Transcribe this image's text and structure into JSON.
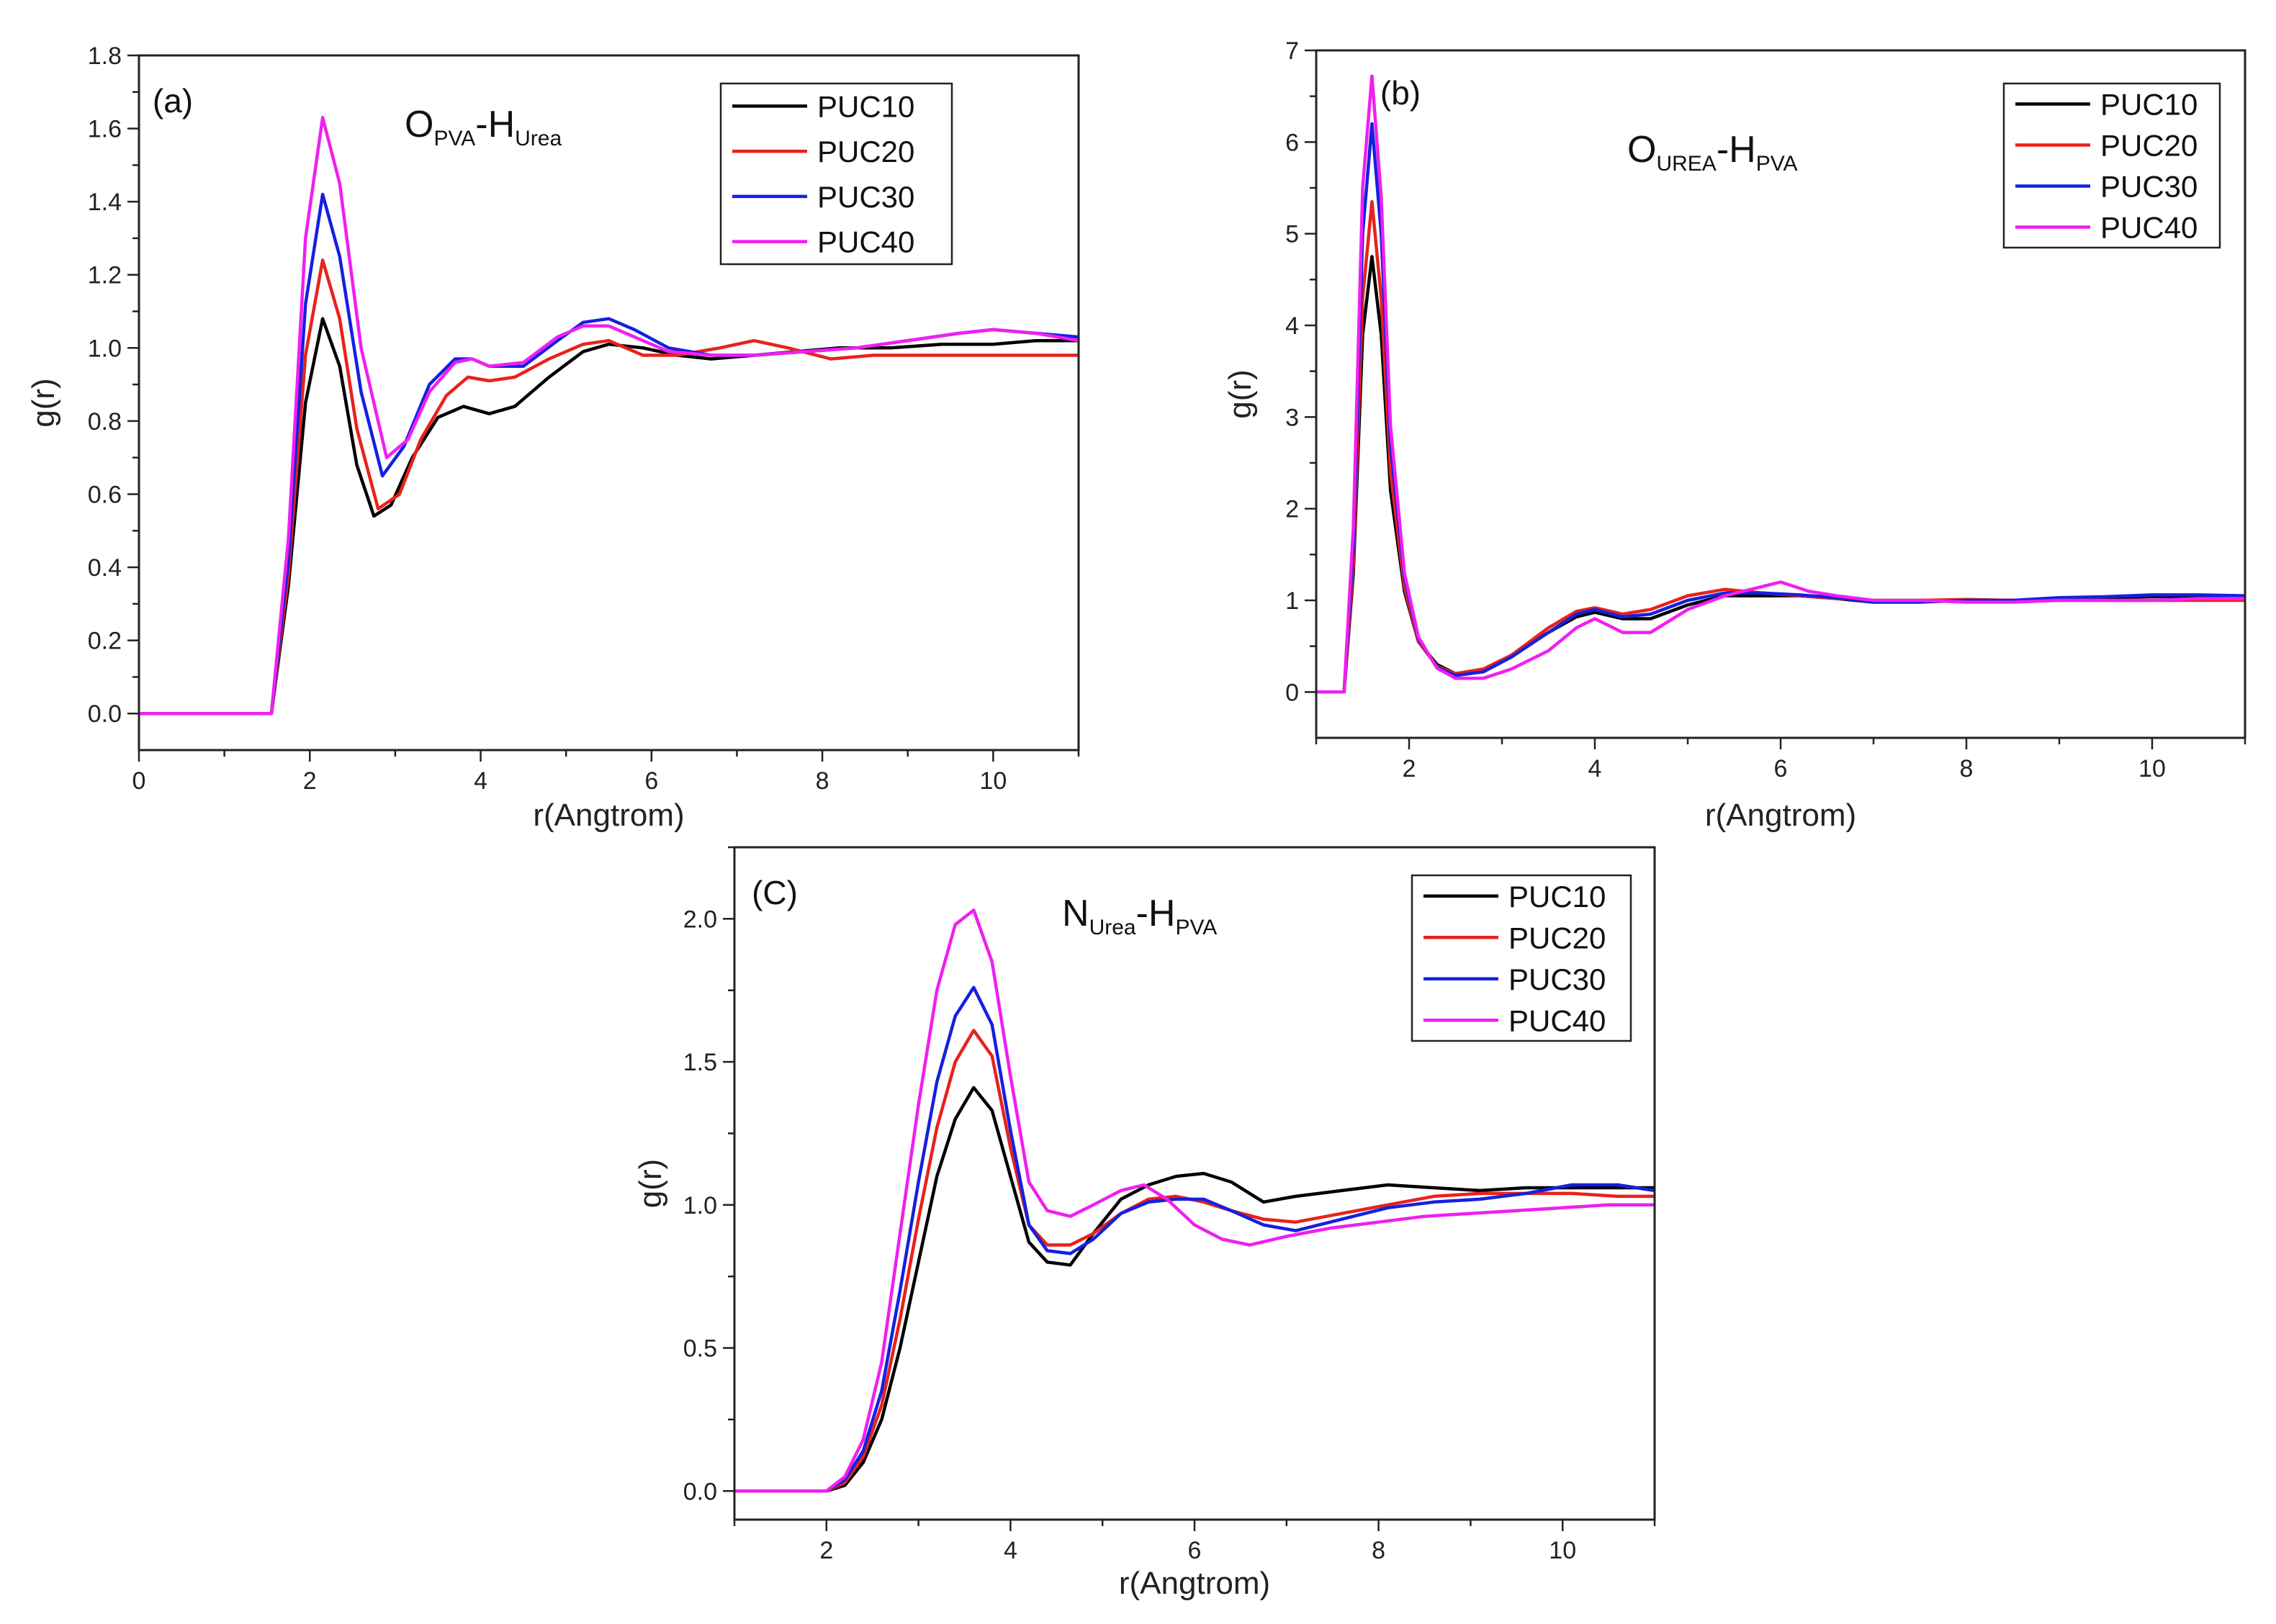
{
  "chart_data": [
    {
      "type": "line",
      "panel_label": "(a)",
      "annotation": {
        "left_main": "O",
        "left_sub": "PVA",
        "dash": "-H",
        "right_sub": "Urea"
      },
      "xlabel": "r(Angtrom)",
      "ylabel": "g(r)",
      "xlim": [
        0,
        11
      ],
      "ylim": [
        -0.1,
        1.8
      ],
      "xticks": [
        0,
        2,
        4,
        6,
        8,
        10
      ],
      "xtick_labels": [
        "0",
        "2",
        "4",
        "6",
        "8",
        "10"
      ],
      "yticks": [
        0.0,
        0.2,
        0.4,
        0.6,
        0.8,
        1.0,
        1.2,
        1.4,
        1.6,
        1.8
      ],
      "ytick_labels": [
        "0.0",
        "0.2",
        "0.4",
        "0.6",
        "0.8",
        "1.0",
        "1.2",
        "1.4",
        "1.6",
        "1.8"
      ],
      "legend_position": "top-right",
      "series": [
        {
          "name": "PUC10",
          "color": "#000000",
          "x": [
            0,
            1.55,
            1.75,
            1.95,
            2.15,
            2.35,
            2.55,
            2.75,
            2.95,
            3.2,
            3.5,
            3.8,
            4.1,
            4.4,
            4.8,
            5.2,
            5.5,
            5.9,
            6.3,
            6.7,
            7.2,
            7.7,
            8.2,
            8.8,
            9.4,
            10.0,
            10.5,
            11.0
          ],
          "y": [
            0,
            0,
            0.35,
            0.85,
            1.08,
            0.95,
            0.68,
            0.54,
            0.57,
            0.7,
            0.81,
            0.84,
            0.82,
            0.84,
            0.92,
            0.99,
            1.01,
            1.0,
            0.98,
            0.97,
            0.98,
            0.99,
            1.0,
            1.0,
            1.01,
            1.01,
            1.02,
            1.02
          ]
        },
        {
          "name": "PUC20",
          "color": "#e8221c",
          "x": [
            0,
            1.55,
            1.75,
            1.95,
            2.15,
            2.35,
            2.55,
            2.8,
            3.05,
            3.3,
            3.6,
            3.85,
            4.1,
            4.4,
            4.8,
            5.2,
            5.5,
            5.9,
            6.3,
            6.8,
            7.2,
            7.6,
            8.1,
            8.6,
            9.2,
            9.8,
            10.4,
            11.0
          ],
          "y": [
            0,
            0,
            0.38,
            0.98,
            1.24,
            1.08,
            0.78,
            0.56,
            0.6,
            0.75,
            0.87,
            0.92,
            0.91,
            0.92,
            0.97,
            1.01,
            1.02,
            0.98,
            0.98,
            1.0,
            1.02,
            1.0,
            0.97,
            0.98,
            0.98,
            0.98,
            0.98,
            0.98
          ]
        },
        {
          "name": "PUC30",
          "color": "#1520e0",
          "x": [
            0,
            1.55,
            1.75,
            1.95,
            2.15,
            2.35,
            2.6,
            2.85,
            3.1,
            3.4,
            3.7,
            3.9,
            4.1,
            4.5,
            4.9,
            5.2,
            5.5,
            5.8,
            6.2,
            6.7,
            7.2,
            7.8,
            8.4,
            9.0,
            9.6,
            10.0,
            10.5,
            11.0
          ],
          "y": [
            0,
            0,
            0.42,
            1.12,
            1.42,
            1.25,
            0.88,
            0.65,
            0.73,
            0.9,
            0.97,
            0.97,
            0.95,
            0.95,
            1.02,
            1.07,
            1.08,
            1.05,
            1.0,
            0.98,
            0.98,
            0.99,
            1.0,
            1.02,
            1.04,
            1.05,
            1.04,
            1.03
          ]
        },
        {
          "name": "PUC40",
          "color": "#f01ff0",
          "x": [
            0,
            1.55,
            1.75,
            1.95,
            2.15,
            2.35,
            2.6,
            2.9,
            3.15,
            3.4,
            3.7,
            3.9,
            4.1,
            4.5,
            4.9,
            5.2,
            5.5,
            5.8,
            6.2,
            6.7,
            7.2,
            7.8,
            8.4,
            9.0,
            9.6,
            10.0,
            10.5,
            11.0
          ],
          "y": [
            0,
            0,
            0.48,
            1.3,
            1.63,
            1.45,
            1.0,
            0.7,
            0.75,
            0.88,
            0.96,
            0.97,
            0.95,
            0.96,
            1.03,
            1.06,
            1.06,
            1.03,
            0.99,
            0.98,
            0.98,
            0.99,
            1.0,
            1.02,
            1.04,
            1.05,
            1.04,
            1.02
          ]
        }
      ]
    },
    {
      "type": "line",
      "panel_label": "(b)",
      "annotation": {
        "left_main": "O",
        "left_sub": "UREA",
        "dash": "-H",
        "right_sub": "PVA"
      },
      "xlabel": "r(Angtrom)",
      "ylabel": "g(r)",
      "xlim": [
        1,
        11
      ],
      "ylim": [
        -0.5,
        7
      ],
      "xticks": [
        2,
        4,
        6,
        8,
        10
      ],
      "xtick_labels": [
        "2",
        "4",
        "6",
        "8",
        "10"
      ],
      "yticks": [
        0,
        1,
        2,
        3,
        4,
        5,
        6,
        7
      ],
      "ytick_labels": [
        "0",
        "1",
        "2",
        "3",
        "4",
        "5",
        "6",
        "7"
      ],
      "legend_position": "top-right",
      "series": [
        {
          "name": "PUC10",
          "color": "#000000",
          "x": [
            1,
            1.3,
            1.4,
            1.5,
            1.6,
            1.7,
            1.8,
            1.95,
            2.1,
            2.3,
            2.5,
            2.8,
            3.1,
            3.5,
            3.8,
            4.0,
            4.3,
            4.6,
            5.0,
            5.4,
            5.8,
            6.2,
            6.6,
            7.0,
            7.5,
            8.0,
            8.5,
            9.0,
            9.5,
            10.0,
            10.5,
            11.0
          ],
          "y": [
            0,
            0,
            1.3,
            3.9,
            4.75,
            3.9,
            2.2,
            1.1,
            0.55,
            0.3,
            0.2,
            0.25,
            0.4,
            0.65,
            0.82,
            0.87,
            0.8,
            0.8,
            0.95,
            1.05,
            1.05,
            1.05,
            1.02,
            0.98,
            1.0,
            1.0,
            1.0,
            1.02,
            1.03,
            1.04,
            1.04,
            1.04
          ]
        },
        {
          "name": "PUC20",
          "color": "#e8221c",
          "x": [
            1,
            1.3,
            1.4,
            1.5,
            1.6,
            1.7,
            1.8,
            1.95,
            2.1,
            2.3,
            2.5,
            2.8,
            3.1,
            3.5,
            3.8,
            4.0,
            4.3,
            4.6,
            5.0,
            5.4,
            5.8,
            6.2,
            6.6,
            7.0,
            7.5,
            8.0,
            8.5,
            9.0,
            9.5,
            10.0,
            10.5,
            11.0
          ],
          "y": [
            0,
            0,
            1.4,
            4.3,
            5.35,
            4.3,
            2.4,
            1.15,
            0.55,
            0.28,
            0.2,
            0.25,
            0.4,
            0.7,
            0.88,
            0.92,
            0.85,
            0.9,
            1.05,
            1.12,
            1.08,
            1.05,
            1.02,
            1.0,
            1.0,
            1.01,
            1.0,
            1.0,
            1.0,
            1.0,
            1.0,
            1.0
          ]
        },
        {
          "name": "PUC30",
          "color": "#1520e0",
          "x": [
            1,
            1.3,
            1.4,
            1.5,
            1.6,
            1.7,
            1.8,
            1.95,
            2.1,
            2.3,
            2.5,
            2.8,
            3.1,
            3.5,
            3.8,
            4.0,
            4.3,
            4.6,
            5.0,
            5.4,
            5.8,
            6.2,
            6.6,
            7.0,
            7.5,
            8.0,
            8.5,
            9.0,
            9.5,
            10.0,
            10.5,
            11.0
          ],
          "y": [
            0,
            0,
            1.6,
            5.0,
            6.2,
            5.0,
            2.7,
            1.25,
            0.58,
            0.27,
            0.18,
            0.22,
            0.38,
            0.65,
            0.85,
            0.9,
            0.82,
            0.85,
            1.0,
            1.08,
            1.08,
            1.06,
            1.03,
            0.98,
            0.98,
            1.0,
            1.0,
            1.03,
            1.04,
            1.06,
            1.06,
            1.05
          ]
        },
        {
          "name": "PUC40",
          "color": "#f01ff0",
          "x": [
            1,
            1.3,
            1.4,
            1.5,
            1.6,
            1.7,
            1.8,
            1.95,
            2.1,
            2.3,
            2.5,
            2.8,
            3.1,
            3.5,
            3.8,
            4.0,
            4.3,
            4.6,
            5.0,
            5.4,
            5.8,
            6.0,
            6.3,
            6.6,
            7.0,
            7.5,
            8.0,
            8.5,
            9.0,
            9.5,
            10.0,
            10.5,
            11.0
          ],
          "y": [
            0,
            0,
            1.8,
            5.5,
            6.72,
            5.4,
            2.9,
            1.3,
            0.6,
            0.26,
            0.15,
            0.15,
            0.25,
            0.45,
            0.7,
            0.8,
            0.65,
            0.65,
            0.9,
            1.05,
            1.15,
            1.2,
            1.1,
            1.05,
            1.0,
            1.0,
            0.98,
            0.98,
            1.0,
            1.0,
            1.0,
            1.02,
            1.02
          ]
        }
      ]
    },
    {
      "type": "line",
      "panel_label": "(C)",
      "annotation": {
        "left_main": "N",
        "left_sub": "Urea",
        "dash": "-H",
        "right_sub": "PVA"
      },
      "xlabel": "r(Angtrom)",
      "ylabel": "g(r)",
      "xlim": [
        1,
        11
      ],
      "ylim": [
        -0.1,
        2.25
      ],
      "xticks": [
        2,
        4,
        6,
        8,
        10
      ],
      "xtick_labels": [
        "2",
        "4",
        "6",
        "8",
        "10"
      ],
      "yticks": [
        0.0,
        0.5,
        1.0,
        1.5,
        2.0
      ],
      "ytick_labels": [
        "0.0",
        "0.5",
        "1.0",
        "1.5",
        "2.0"
      ],
      "legend_position": "top-right",
      "series": [
        {
          "name": "PUC10",
          "color": "#000000",
          "x": [
            1,
            1.8,
            2.0,
            2.2,
            2.4,
            2.6,
            2.8,
            3.0,
            3.2,
            3.4,
            3.6,
            3.8,
            4.0,
            4.2,
            4.4,
            4.65,
            4.9,
            5.2,
            5.5,
            5.8,
            6.1,
            6.4,
            6.75,
            7.1,
            7.6,
            8.1,
            8.6,
            9.1,
            9.6,
            10.1,
            10.6,
            11.0
          ],
          "y": [
            0,
            0,
            0.0,
            0.02,
            0.1,
            0.25,
            0.5,
            0.8,
            1.1,
            1.3,
            1.41,
            1.33,
            1.1,
            0.87,
            0.8,
            0.79,
            0.9,
            1.02,
            1.07,
            1.1,
            1.11,
            1.08,
            1.01,
            1.03,
            1.05,
            1.07,
            1.06,
            1.05,
            1.06,
            1.06,
            1.06,
            1.06
          ]
        },
        {
          "name": "PUC20",
          "color": "#e8221c",
          "x": [
            1,
            1.8,
            2.0,
            2.2,
            2.4,
            2.6,
            2.8,
            3.0,
            3.2,
            3.4,
            3.6,
            3.8,
            4.0,
            4.2,
            4.4,
            4.65,
            4.9,
            5.2,
            5.5,
            5.8,
            6.1,
            6.4,
            6.75,
            7.1,
            7.6,
            8.1,
            8.6,
            9.1,
            9.6,
            10.1,
            10.6,
            11.0
          ],
          "y": [
            0,
            0,
            0.0,
            0.03,
            0.12,
            0.3,
            0.6,
            0.95,
            1.27,
            1.5,
            1.61,
            1.52,
            1.2,
            0.93,
            0.86,
            0.86,
            0.9,
            0.97,
            1.02,
            1.03,
            1.01,
            0.98,
            0.95,
            0.94,
            0.97,
            1.0,
            1.03,
            1.04,
            1.04,
            1.04,
            1.03,
            1.03
          ]
        },
        {
          "name": "PUC30",
          "color": "#1520e0",
          "x": [
            1,
            1.8,
            2.0,
            2.2,
            2.4,
            2.6,
            2.8,
            3.0,
            3.2,
            3.4,
            3.6,
            3.8,
            4.0,
            4.2,
            4.4,
            4.65,
            4.9,
            5.2,
            5.5,
            5.8,
            6.1,
            6.4,
            6.75,
            7.1,
            7.6,
            8.1,
            8.6,
            9.1,
            9.6,
            10.1,
            10.6,
            11.0
          ],
          "y": [
            0,
            0,
            0.0,
            0.04,
            0.14,
            0.35,
            0.7,
            1.08,
            1.43,
            1.66,
            1.76,
            1.63,
            1.26,
            0.93,
            0.84,
            0.83,
            0.88,
            0.97,
            1.01,
            1.02,
            1.02,
            0.98,
            0.93,
            0.91,
            0.95,
            0.99,
            1.01,
            1.02,
            1.04,
            1.07,
            1.07,
            1.05
          ]
        },
        {
          "name": "PUC40",
          "color": "#f01ff0",
          "x": [
            1,
            1.8,
            2.0,
            2.2,
            2.4,
            2.6,
            2.8,
            3.0,
            3.2,
            3.4,
            3.6,
            3.8,
            4.0,
            4.2,
            4.4,
            4.65,
            4.9,
            5.2,
            5.45,
            5.7,
            6.0,
            6.3,
            6.6,
            7.0,
            7.5,
            8.0,
            8.5,
            9.0,
            9.5,
            10.0,
            10.5,
            11.0
          ],
          "y": [
            0,
            0,
            0.0,
            0.05,
            0.18,
            0.45,
            0.9,
            1.35,
            1.75,
            1.98,
            2.03,
            1.85,
            1.45,
            1.08,
            0.98,
            0.96,
            1.0,
            1.05,
            1.07,
            1.02,
            0.93,
            0.88,
            0.86,
            0.89,
            0.92,
            0.94,
            0.96,
            0.97,
            0.98,
            0.99,
            1.0,
            1.0
          ]
        }
      ]
    }
  ]
}
